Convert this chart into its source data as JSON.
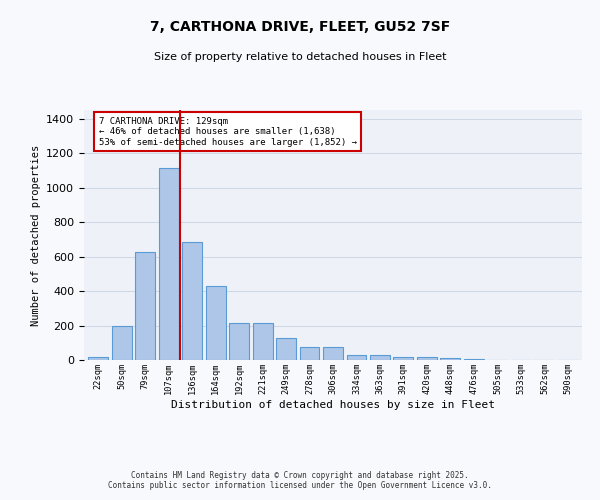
{
  "title_line1": "7, CARTHONA DRIVE, FLEET, GU52 7SF",
  "title_line2": "Size of property relative to detached houses in Fleet",
  "xlabel": "Distribution of detached houses by size in Fleet",
  "ylabel": "Number of detached properties",
  "categories": [
    "22sqm",
    "50sqm",
    "79sqm",
    "107sqm",
    "136sqm",
    "164sqm",
    "192sqm",
    "221sqm",
    "249sqm",
    "278sqm",
    "306sqm",
    "334sqm",
    "363sqm",
    "391sqm",
    "420sqm",
    "448sqm",
    "476sqm",
    "505sqm",
    "533sqm",
    "562sqm",
    "590sqm"
  ],
  "values": [
    15,
    195,
    625,
    1115,
    685,
    430,
    215,
    215,
    130,
    75,
    75,
    30,
    30,
    20,
    15,
    10,
    5,
    2,
    1,
    1,
    0
  ],
  "bar_color": "#aec6e8",
  "bar_edge_color": "#5b9bd5",
  "bar_edge_width": 0.8,
  "vline_x": 3.5,
  "vline_color": "#cc0000",
  "annotation_text": "7 CARTHONA DRIVE: 129sqm\n← 46% of detached houses are smaller (1,638)\n53% of semi-detached houses are larger (1,852) →",
  "annotation_box_color": "#ffffff",
  "annotation_box_edge_color": "#cc0000",
  "ylim": [
    0,
    1450
  ],
  "grid_color": "#d0d8e8",
  "bg_color": "#eef2f8",
  "fig_bg_color": "#f8f9fc",
  "footer_line1": "Contains HM Land Registry data © Crown copyright and database right 2025.",
  "footer_line2": "Contains public sector information licensed under the Open Government Licence v3.0."
}
